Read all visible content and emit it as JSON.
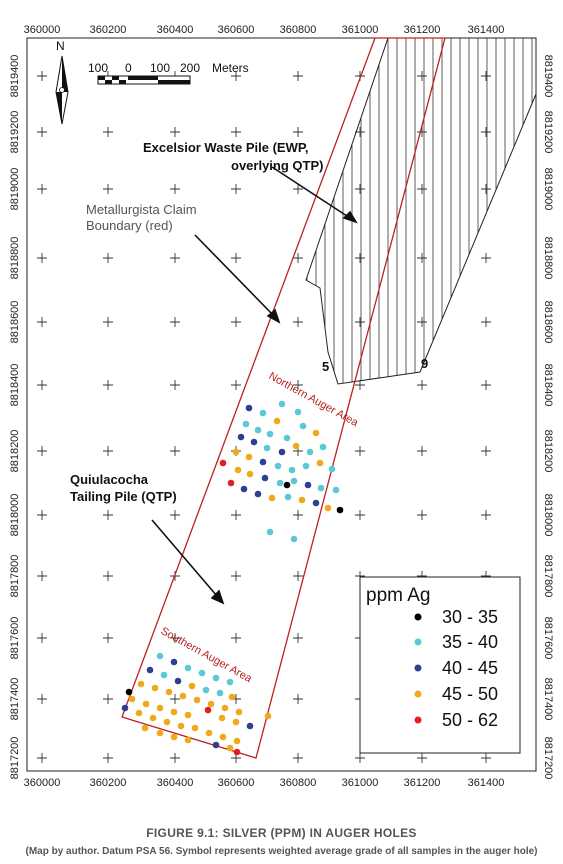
{
  "map": {
    "x_ticks": [
      "360000",
      "360200",
      "360400",
      "360600",
      "360800",
      "361000",
      "361200",
      "361400"
    ],
    "y_ticks": [
      "8819400",
      "8819200",
      "8819000",
      "8818800",
      "8818600",
      "8818400",
      "8818200",
      "8818000",
      "8817800",
      "8817600",
      "8817400",
      "8817200"
    ],
    "north_label": "N",
    "scale_labels": [
      "100",
      "0",
      "100",
      "200"
    ],
    "scale_unit": "Meters",
    "annotations": {
      "excelsior": [
        "Excelsior Waste Pile (EWP,",
        "overlying QTP)"
      ],
      "claim": [
        "Metallurgista Claim",
        "Boundary (red)"
      ],
      "quiulacocha": [
        "Quiulacocha",
        "Tailing Pile (QTP)"
      ],
      "northern_area": "Northern Auger Area",
      "southern_area": "Southern Auger Area",
      "vertex_5": "5",
      "vertex_9": "9"
    },
    "legend": {
      "title": "ppm Ag",
      "items": [
        {
          "label": "30 - 35",
          "color": "#000000"
        },
        {
          "label": "35 - 40",
          "color": "#5bc8d8"
        },
        {
          "label": "40 - 45",
          "color": "#2e3f8f"
        },
        {
          "label": "45 - 50",
          "color": "#f0a81c"
        },
        {
          "label": "50 - 62",
          "color": "#e02020"
        }
      ]
    }
  },
  "caption": {
    "title": "FIGURE 9.1: SILVER (PPM) IN AUGER HOLES",
    "note": "(Map by author. Datum PSA 56. Symbol represents weighted average grade of all samples in the auger hole)"
  }
}
